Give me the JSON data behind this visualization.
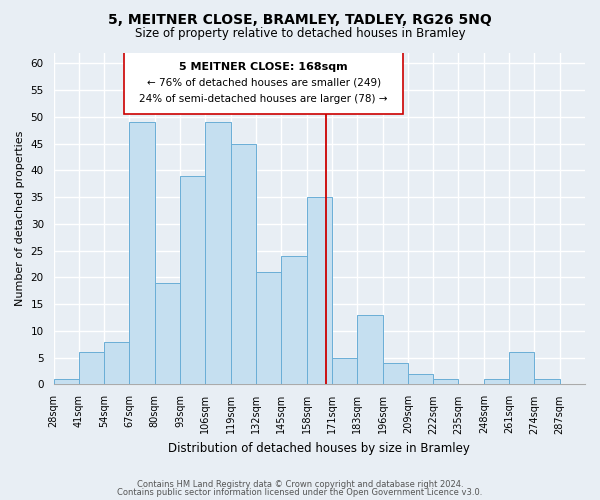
{
  "title": "5, MEITNER CLOSE, BRAMLEY, TADLEY, RG26 5NQ",
  "subtitle": "Size of property relative to detached houses in Bramley",
  "xlabel": "Distribution of detached houses by size in Bramley",
  "ylabel": "Number of detached properties",
  "bar_labels": [
    "28sqm",
    "41sqm",
    "54sqm",
    "67sqm",
    "80sqm",
    "93sqm",
    "106sqm",
    "119sqm",
    "132sqm",
    "145sqm",
    "158sqm",
    "171sqm",
    "183sqm",
    "196sqm",
    "209sqm",
    "222sqm",
    "235sqm",
    "248sqm",
    "261sqm",
    "274sqm",
    "287sqm"
  ],
  "heights": [
    1,
    6,
    8,
    49,
    19,
    39,
    49,
    45,
    21,
    24,
    35,
    5,
    13,
    4,
    2,
    1,
    0,
    1,
    6,
    1,
    0
  ],
  "bar_color": "#c5dff0",
  "bar_edgecolor": "#6aaed6",
  "vline_color": "#cc0000",
  "annotation_title": "5 MEITNER CLOSE: 168sqm",
  "annotation_line1": "← 76% of detached houses are smaller (249)",
  "annotation_line2": "24% of semi-detached houses are larger (78) →",
  "annotation_box_color": "#ffffff",
  "annotation_box_edgecolor": "#cc0000",
  "ylim": [
    0,
    62
  ],
  "yticks": [
    0,
    5,
    10,
    15,
    20,
    25,
    30,
    35,
    40,
    45,
    50,
    55,
    60
  ],
  "footer1": "Contains HM Land Registry data © Crown copyright and database right 2024.",
  "footer2": "Contains public sector information licensed under the Open Government Licence v3.0.",
  "bg_color": "#e8eef4",
  "plot_bg_color": "#e8eef4",
  "grid_color": "#ffffff",
  "title_fontsize": 10,
  "subtitle_fontsize": 8.5,
  "ylabel_fontsize": 8,
  "xlabel_fontsize": 8.5,
  "tick_fontsize": 7,
  "ann_fontsize": 8,
  "vline_position": 10.769
}
